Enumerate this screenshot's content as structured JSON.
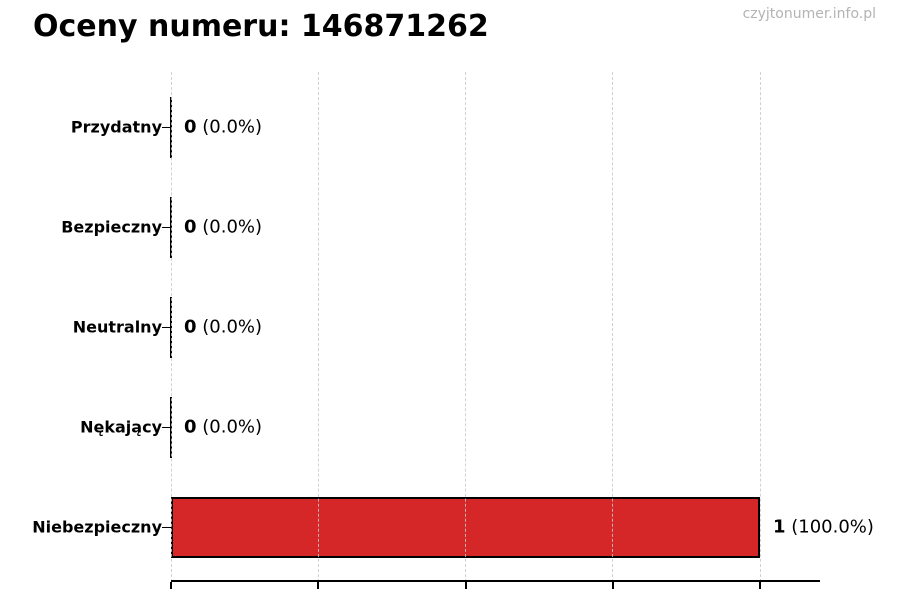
{
  "header": {
    "title": "Oceny numeru: 146871262",
    "watermark": "czyjtonumer.info.pl"
  },
  "chart_data": {
    "type": "bar",
    "orientation": "horizontal",
    "title": "Oceny numeru: 146871262",
    "categories": [
      "Przydatny",
      "Bezpieczny",
      "Neutralny",
      "Nękający",
      "Niebezpieczny"
    ],
    "values": [
      0,
      0,
      0,
      0,
      1
    ],
    "value_labels": [
      {
        "count": "0",
        "pct": "0.0%"
      },
      {
        "count": "0",
        "pct": "0.0%"
      },
      {
        "count": "0",
        "pct": "0.0%"
      },
      {
        "count": "0",
        "pct": "0.0%"
      },
      {
        "count": "1",
        "pct": "100.0%"
      }
    ],
    "xlabel": "",
    "ylabel": "",
    "xlim": [
      0,
      1.1
    ],
    "xticks": [
      0,
      0.25,
      0.5,
      0.75,
      1.0
    ],
    "xtick_labels_visible": false,
    "grid": "vertical-dashed",
    "legend": "none",
    "colors": {
      "bar_fill": "#d62728",
      "bar_edge": "#000000",
      "grid": "#c9c9c9",
      "watermark": "#b3b3b3",
      "text": "#000000"
    }
  }
}
